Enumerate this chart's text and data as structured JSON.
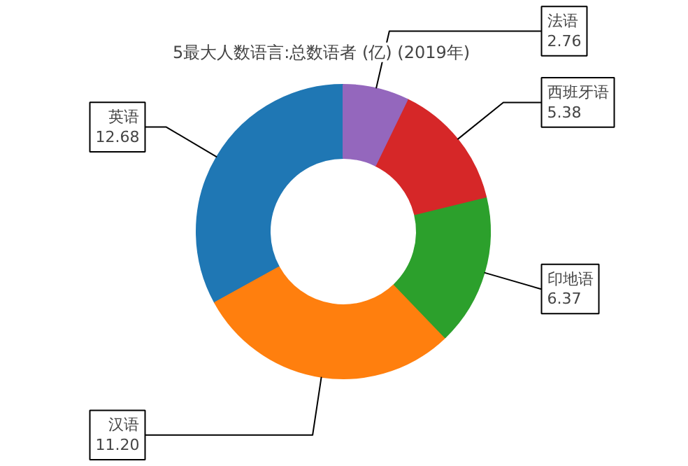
{
  "chart_data": {
    "type": "donut",
    "title": "5最大人数语言:总数语者 (亿) (2019年)",
    "categories": [
      "英语",
      "汉语",
      "印地语",
      "西班牙语",
      "法语"
    ],
    "values": [
      12.68,
      11.2,
      6.37,
      5.38,
      2.76
    ],
    "colors": [
      "#1f77b4",
      "#ff7f0e",
      "#2ca02c",
      "#d62728",
      "#9467bd"
    ],
    "value_labels": [
      "12.68",
      "11.20",
      "6.37",
      "5.38",
      "2.76"
    ]
  }
}
